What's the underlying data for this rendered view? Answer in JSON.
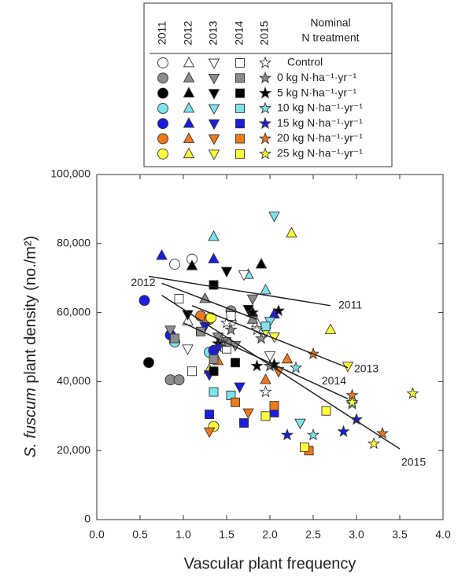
{
  "chart_data": {
    "type": "scatter",
    "x_label": "Vascular plant frequency",
    "y_label_species": "S. fuscum",
    "y_label_rest": " plant density (no./m²)",
    "xlim": [
      0,
      4
    ],
    "xticks": [
      {
        "value": 0,
        "label": "0.0"
      },
      0.5,
      {
        "value": 1,
        "label": "1.0"
      },
      1.5,
      {
        "value": 2,
        "label": "2.0"
      },
      2.5,
      {
        "value": 3,
        "label": "3.0"
      },
      3.5,
      {
        "value": 4,
        "label": "4.0"
      }
    ],
    "ylim": [
      0,
      100000
    ],
    "yticks": [
      0,
      {
        "value": 20000,
        "label": "20,000"
      },
      {
        "value": 40000,
        "label": "40,000"
      },
      {
        "value": 60000,
        "label": "60,000"
      },
      {
        "value": 80000,
        "label": "80,000"
      },
      {
        "value": 100000,
        "label": "100,000"
      }
    ],
    "legend_title": [
      "Nominal",
      "N treatment"
    ],
    "treatments": [
      {
        "name": "Control",
        "color": "#ffffff"
      },
      {
        "name": "0 kg N·ha⁻¹·yr⁻¹",
        "color": "#8c8c8c"
      },
      {
        "name": "5 kg N·ha⁻¹·yr⁻¹",
        "color": "#000000"
      },
      {
        "name": "10 kg N·ha⁻¹·yr⁻¹",
        "color": "#7fe3ec"
      },
      {
        "name": "15 kg N·ha⁻¹·yr⁻¹",
        "color": "#1c1cde"
      },
      {
        "name": "20 kg N·ha⁻¹·yr⁻¹",
        "color": "#f07a1a"
      },
      {
        "name": "25 kg N·ha⁻¹·yr⁻¹",
        "color": "#ffff3c"
      }
    ],
    "years": [
      {
        "name": "2011",
        "marker": "circle",
        "groups": [
          {
            "x": [
              0.9,
              1.1,
              1.55
            ],
            "y": [
              74000,
              75500,
              57500
            ]
          },
          {
            "x": [
              0.85,
              0.95,
              1.55
            ],
            "y": [
              40500,
              40500,
              60500
            ]
          },
          {
            "x": [
              0.6
            ],
            "y": [
              45500
            ]
          },
          {
            "x": [
              0.9,
              1.3
            ],
            "y": [
              51500,
              48500
            ]
          },
          {
            "x": [
              0.55,
              0.85,
              1.35
            ],
            "y": [
              63500,
              53500,
              49000
            ]
          },
          {
            "x": [
              1.2,
              1.3
            ],
            "y": [
              59000,
              58000
            ]
          },
          {
            "x": [
              1.35,
              1.32
            ],
            "y": [
              27000,
              58500
            ]
          }
        ]
      },
      {
        "name": "2012",
        "marker": "triangle-up",
        "groups": [
          {
            "x": [
              1.05,
              1.85
            ],
            "y": [
              57500,
              57000
            ]
          },
          {
            "x": [
              1.25,
              1.8
            ],
            "y": [
              64000,
              58000
            ]
          },
          {
            "x": [
              1.1,
              1.9,
              1.8
            ],
            "y": [
              73500,
              74000,
              60000
            ]
          },
          {
            "x": [
              1.35,
              1.75,
              1.95
            ],
            "y": [
              82000,
              71000,
              66500
            ]
          },
          {
            "x": [
              0.75,
              1.35,
              2.05
            ],
            "y": [
              76500,
              75500,
              59500
            ]
          },
          {
            "x": [
              1.4,
              1.95,
              2.2
            ],
            "y": [
              46000,
              40500,
              46500
            ]
          },
          {
            "x": [
              2.25,
              2.7,
              1.3
            ],
            "y": [
              83000,
              55000,
              43500
            ]
          }
        ]
      },
      {
        "name": "2013",
        "marker": "triangle-down",
        "groups": [
          {
            "x": [
              1.05,
              1.7,
              2.0
            ],
            "y": [
              49500,
              71000,
              47500
            ]
          },
          {
            "x": [
              0.85,
              1.4,
              1.8,
              1.6
            ],
            "y": [
              55000,
              53000,
              64000,
              50500
            ]
          },
          {
            "x": [
              1.5,
              1.75,
              1.05
            ],
            "y": [
              72000,
              61000,
              59500
            ]
          },
          {
            "x": [
              2.05,
              2.35,
              2.0
            ],
            "y": [
              88000,
              28000,
              57500
            ]
          },
          {
            "x": [
              1.25,
              1.3,
              1.65
            ],
            "y": [
              56000,
              42000,
              38500
            ]
          },
          {
            "x": [
              1.75,
              1.3,
              2.1
            ],
            "y": [
              31000,
              25500,
              43000
            ]
          },
          {
            "x": [
              2.9,
              1.95,
              2.05
            ],
            "y": [
              44500,
              54500,
              53000
            ]
          }
        ]
      },
      {
        "name": "2014",
        "marker": "square",
        "groups": [
          {
            "x": [
              0.95,
              1.5,
              1.55,
              1.1
            ],
            "y": [
              64000,
              49500,
              59000,
              43000
            ]
          },
          {
            "x": [
              0.9,
              1.2,
              1.5,
              1.35
            ],
            "y": [
              52500,
              54500,
              51500,
              46500
            ]
          },
          {
            "x": [
              1.35,
              1.35,
              1.6
            ],
            "y": [
              68000,
              43000,
              45500
            ]
          },
          {
            "x": [
              1.95,
              1.35,
              1.55
            ],
            "y": [
              56000,
              37000,
              36000
            ]
          },
          {
            "x": [
              1.7,
              2.05,
              1.3
            ],
            "y": [
              28000,
              31000,
              30500
            ]
          },
          {
            "x": [
              2.05,
              1.6,
              2.45
            ],
            "y": [
              33000,
              34000,
              20000
            ]
          },
          {
            "x": [
              2.4,
              2.65,
              1.95
            ],
            "y": [
              21000,
              31500,
              30000
            ]
          }
        ]
      },
      {
        "name": "2015",
        "marker": "star",
        "groups": [
          {
            "x": [
              1.5,
              1.95,
              1.85
            ],
            "y": [
              57000,
              37000,
              55000
            ]
          },
          {
            "x": [
              1.55,
              1.9,
              2.0,
              1.45
            ],
            "y": [
              55000,
              52500,
              44500,
              51500
            ]
          },
          {
            "x": [
              1.4,
              1.8,
              1.85,
              2.05,
              2.1
            ],
            "y": [
              51000,
              60000,
              44500,
              45000,
              60500
            ]
          },
          {
            "x": [
              2.3,
              2.5,
              2.95
            ],
            "y": [
              44000,
              24500,
              33500
            ]
          },
          {
            "x": [
              2.2,
              2.85,
              3.0,
              1.4
            ],
            "y": [
              24500,
              25500,
              29000,
              50000
            ]
          },
          {
            "x": [
              2.95,
              3.3,
              2.5
            ],
            "y": [
              36000,
              25000,
              48000
            ]
          },
          {
            "x": [
              2.95,
              3.2,
              3.65
            ],
            "y": [
              34000,
              22000,
              36500
            ]
          }
        ]
      }
    ],
    "trend_lines": [
      {
        "label": "2011",
        "x": [
          0.6,
          2.7
        ],
        "y": [
          70500,
          62000
        ]
      },
      {
        "label": "2012",
        "x": [
          0.75,
          1.85
        ],
        "y": [
          68500,
          58000
        ]
      },
      {
        "label": "2013",
        "x": [
          1.1,
          2.9
        ],
        "y": [
          62000,
          44000
        ]
      },
      {
        "label": "2014",
        "x": [
          1.0,
          2.9
        ],
        "y": [
          57000,
          35000
        ]
      },
      {
        "label": "2015",
        "x": [
          0.75,
          3.5
        ],
        "y": [
          65000,
          20500
        ]
      }
    ]
  }
}
